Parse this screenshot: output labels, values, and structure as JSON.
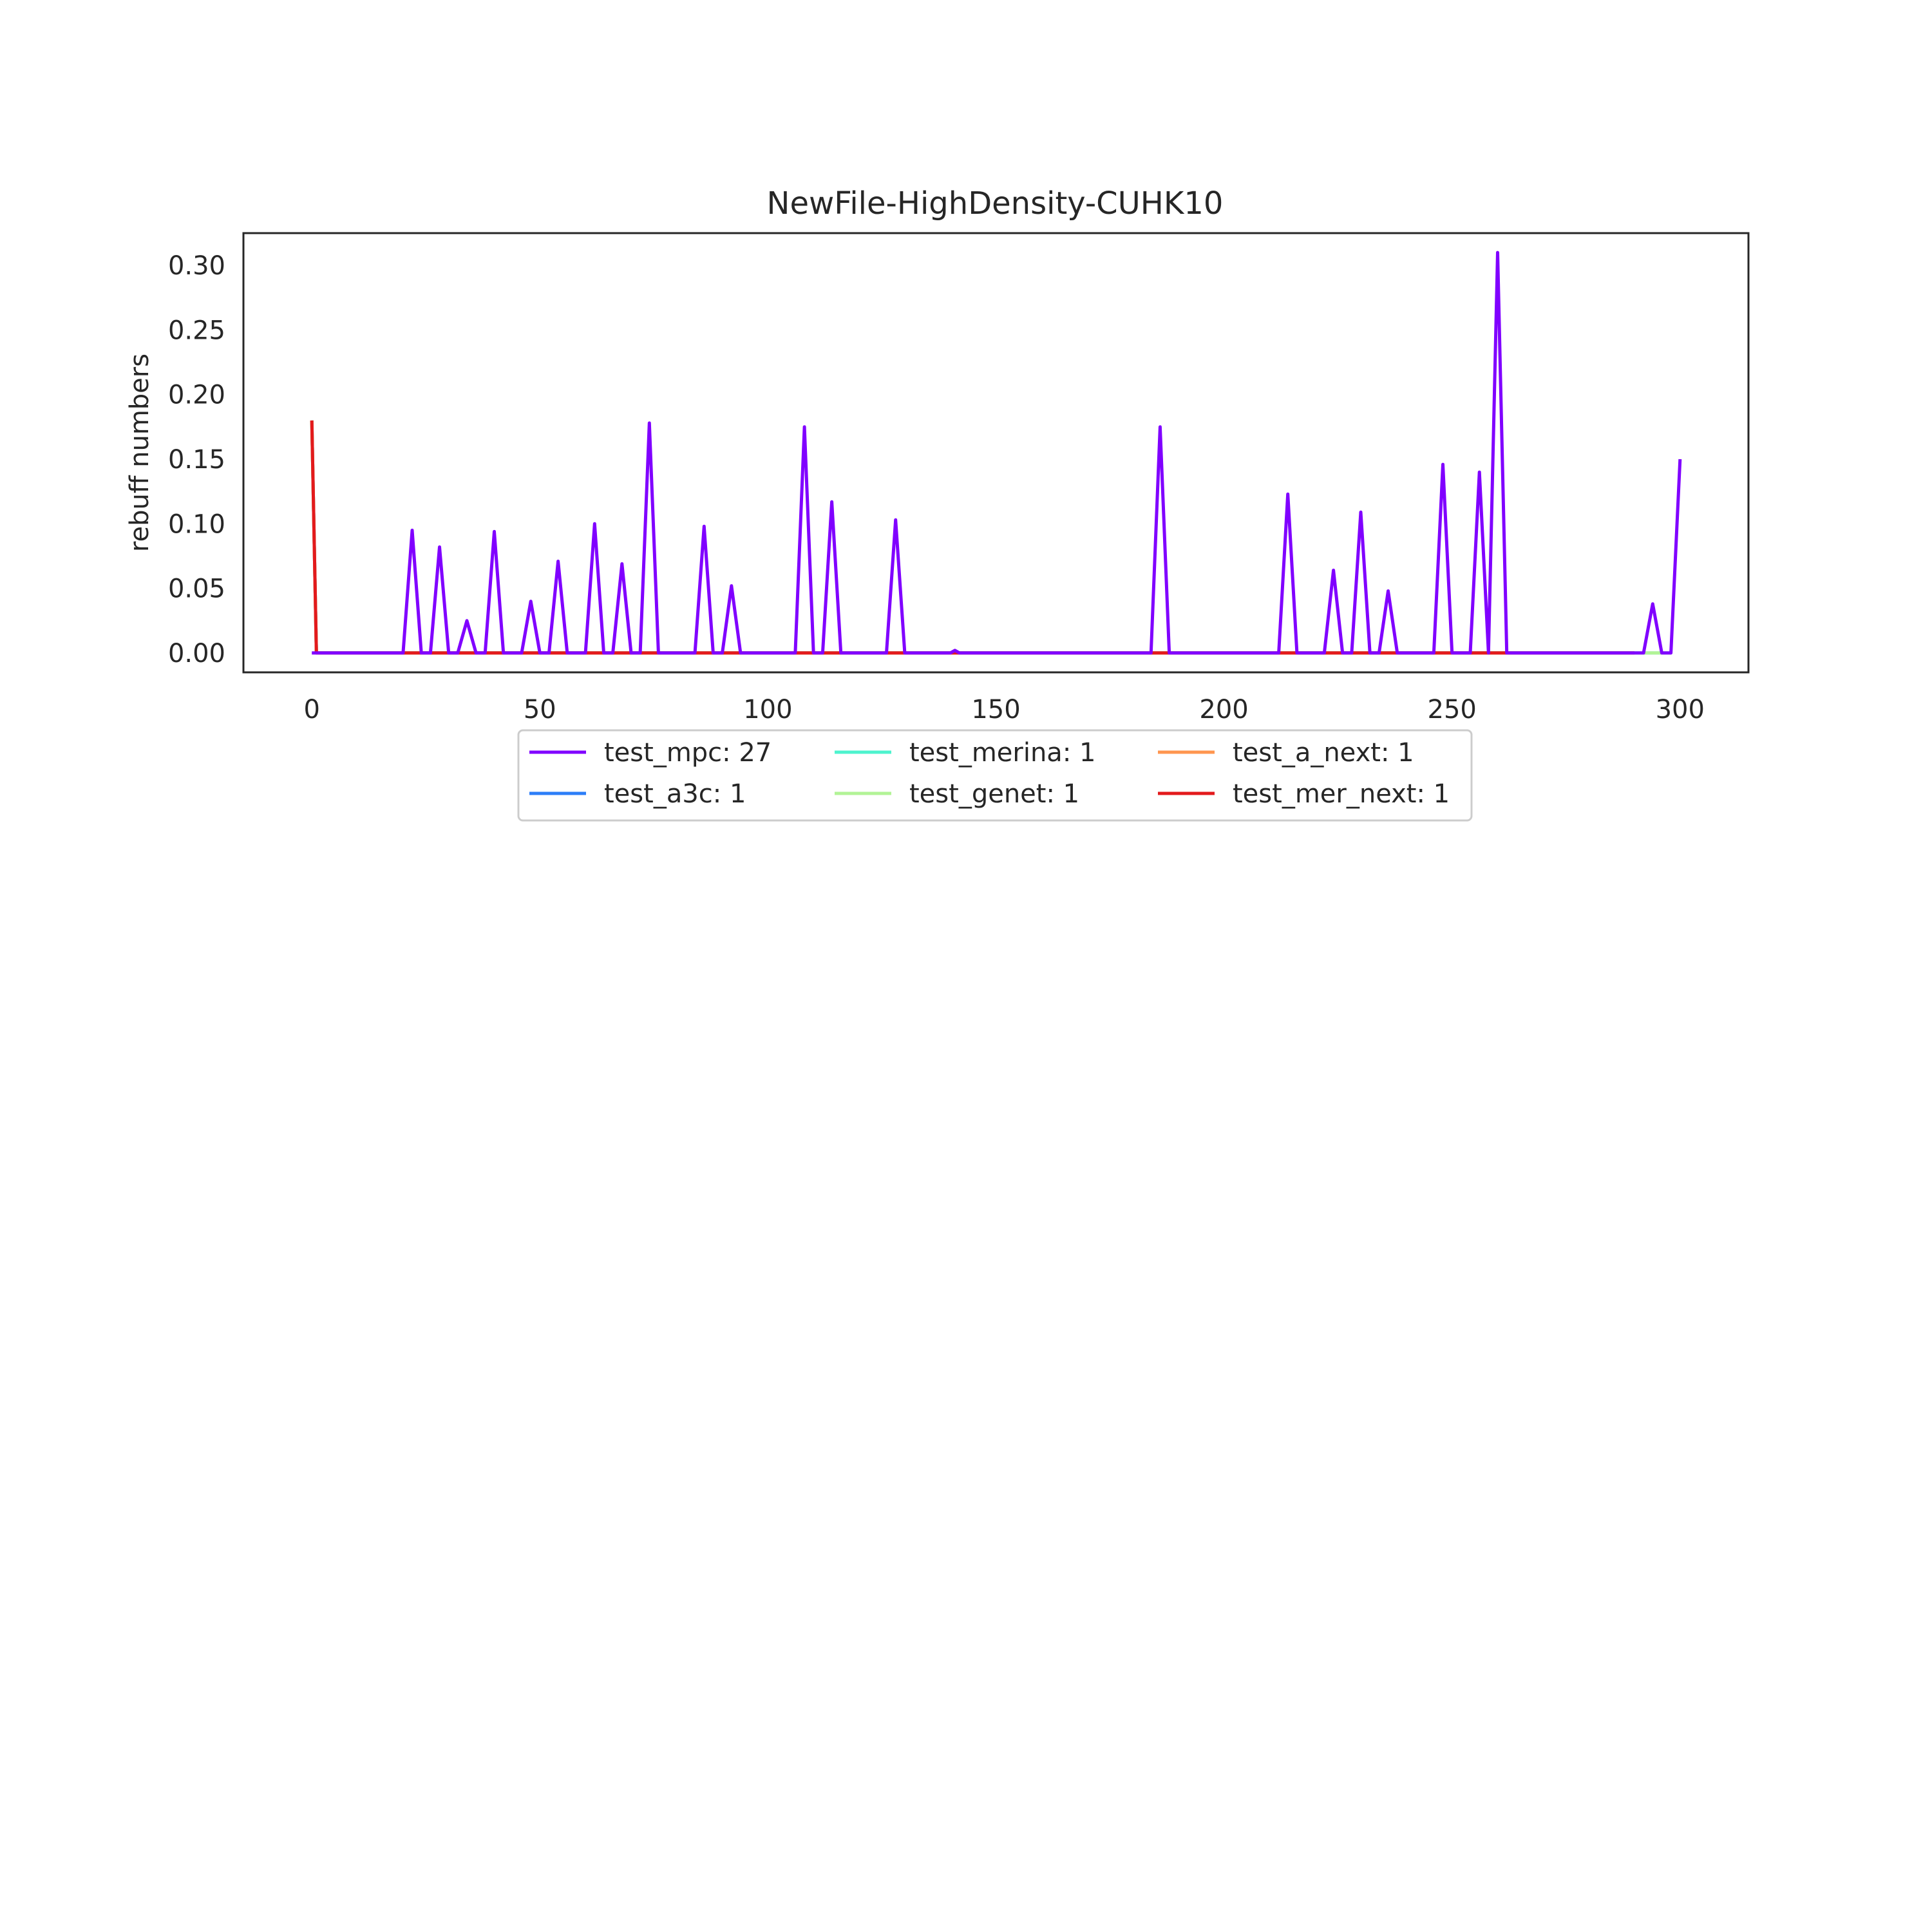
{
  "chart_data": {
    "type": "line",
    "title": "NewFile-HighDensity-CUHK10",
    "xlabel": "",
    "ylabel": "rebuff numbers",
    "xlim": [
      -15,
      315
    ],
    "ylim": [
      -0.015,
      0.325
    ],
    "x_ticks": [
      0,
      50,
      100,
      150,
      200,
      250,
      300
    ],
    "y_ticks": [
      0.0,
      0.05,
      0.1,
      0.15,
      0.2,
      0.25,
      0.3
    ],
    "x_tick_labels": [
      "0",
      "50",
      "100",
      "150",
      "200",
      "250",
      "300"
    ],
    "y_tick_labels": [
      "0.00",
      "0.05",
      "0.10",
      "0.15",
      "0.20",
      "0.25",
      "0.30"
    ],
    "grid": false,
    "legend": {
      "placement": "below-center",
      "columns": 3
    },
    "series": [
      {
        "name": "test_mpc: 27",
        "color": "#8000ff",
        "points": [
          [
            0,
            0
          ],
          [
            20,
            0
          ],
          [
            22,
            0.095
          ],
          [
            24,
            0
          ],
          [
            26,
            0
          ],
          [
            28,
            0.082
          ],
          [
            30,
            0
          ],
          [
            32,
            0
          ],
          [
            34,
            0.025
          ],
          [
            36,
            0
          ],
          [
            38,
            0
          ],
          [
            40,
            0.094
          ],
          [
            42,
            0
          ],
          [
            46,
            0
          ],
          [
            48,
            0.04
          ],
          [
            50,
            0
          ],
          [
            52,
            0
          ],
          [
            54,
            0.071
          ],
          [
            56,
            0
          ],
          [
            60,
            0
          ],
          [
            62,
            0.1
          ],
          [
            64,
            0
          ],
          [
            66,
            0
          ],
          [
            68,
            0.069
          ],
          [
            70,
            0
          ],
          [
            72,
            0
          ],
          [
            74,
            0.178
          ],
          [
            76,
            0
          ],
          [
            84,
            0
          ],
          [
            86,
            0.098
          ],
          [
            88,
            0
          ],
          [
            90,
            0
          ],
          [
            92,
            0.052
          ],
          [
            94,
            0
          ],
          [
            106,
            0
          ],
          [
            108,
            0.175
          ],
          [
            110,
            0
          ],
          [
            112,
            0
          ],
          [
            114,
            0.117
          ],
          [
            116,
            0
          ],
          [
            126,
            0
          ],
          [
            128,
            0.103
          ],
          [
            130,
            0
          ],
          [
            140,
            0
          ],
          [
            141,
            0.002
          ],
          [
            142,
            0
          ],
          [
            184,
            0
          ],
          [
            186,
            0.175
          ],
          [
            188,
            0
          ],
          [
            212,
            0
          ],
          [
            214,
            0.123
          ],
          [
            216,
            0
          ],
          [
            222,
            0
          ],
          [
            224,
            0.064
          ],
          [
            226,
            0
          ],
          [
            228,
            0
          ],
          [
            230,
            0.109
          ],
          [
            232,
            0
          ],
          [
            234,
            0
          ],
          [
            236,
            0.048
          ],
          [
            238,
            0
          ],
          [
            246,
            0
          ],
          [
            248,
            0.146
          ],
          [
            250,
            0
          ],
          [
            254,
            0
          ],
          [
            256,
            0.14
          ],
          [
            258,
            0
          ],
          [
            260,
            0.31
          ],
          [
            262,
            0
          ],
          [
            292,
            0
          ],
          [
            294,
            0.038
          ],
          [
            296,
            0
          ],
          [
            298,
            0
          ],
          [
            300,
            0.15
          ]
        ]
      },
      {
        "name": "test_a3c: 1",
        "color": "#2c7ef8",
        "points": [
          [
            0,
            0.18
          ],
          [
            1,
            0
          ],
          [
            290,
            0
          ]
        ]
      },
      {
        "name": "test_merina: 1",
        "color": "#4df3ce",
        "points": [
          [
            0,
            0.18
          ],
          [
            1,
            0
          ],
          [
            298,
            0
          ]
        ]
      },
      {
        "name": "test_genet: 1",
        "color": "#b2f396",
        "points": [
          [
            0,
            0.18
          ],
          [
            1,
            0
          ],
          [
            298,
            0
          ]
        ]
      },
      {
        "name": "test_a_next: 1",
        "color": "#ff964f",
        "points": [
          [
            0,
            0.18
          ],
          [
            1,
            0
          ],
          [
            290,
            0
          ]
        ]
      },
      {
        "name": "test_mer_next: 1",
        "color": "#e31a1c",
        "points": [
          [
            0,
            0.18
          ],
          [
            1,
            0
          ],
          [
            290,
            0
          ]
        ]
      }
    ]
  }
}
